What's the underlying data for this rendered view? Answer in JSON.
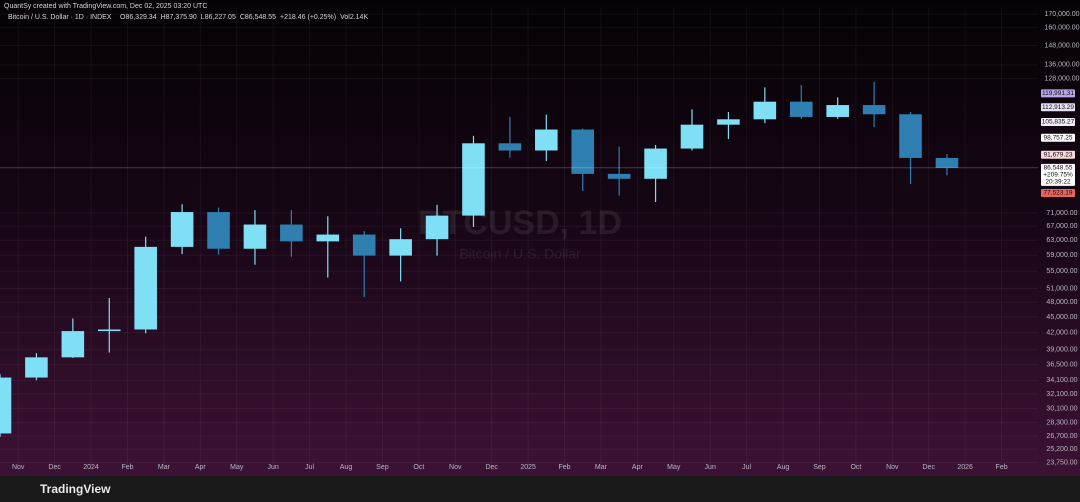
{
  "chart_data": {
    "type": "candlestick",
    "credit": "QuantSy created with TradingView.com, Dec 02, 2025 03:20 UTC",
    "title": "Bitcoin / U.S. Dollar · 1D · INDEX",
    "legend_values": [
      "O86,329.34",
      "H87,375.90",
      "L86,227.05",
      "C86,548.55",
      "+218.46 (+0.25%)",
      "Vol2.14K"
    ],
    "watermark": "BTCUSD, 1D",
    "watermark_sub": "Bitcoin / U.S. Dollar",
    "brand": "TradingView",
    "log_scale": true,
    "grid": true,
    "up_color": "#7fe0f5",
    "down_color": "#2f7fb0",
    "x": [
      "2023-10",
      "2023-11",
      "2023-12",
      "2024-01",
      "2024-02",
      "2024-03",
      "2024-04",
      "2024-05",
      "2024-06",
      "2024-07",
      "2024-08",
      "2024-09",
      "2024-10",
      "2024-11",
      "2024-12",
      "2025-01",
      "2025-02",
      "2025-03",
      "2025-04",
      "2025-05",
      "2025-06",
      "2025-07",
      "2025-08",
      "2025-09",
      "2025-10",
      "2025-11",
      "2025-12"
    ],
    "open": [
      27000,
      34500,
      37700,
      42300,
      42600,
      61200,
      71300,
      60700,
      67500,
      62700,
      64600,
      58900,
      63300,
      70200,
      96400,
      93400,
      102400,
      84300,
      82500,
      94200,
      104600,
      107100,
      115700,
      108200,
      114000,
      109500,
      90400
    ],
    "high": [
      35000,
      38400,
      44700,
      48900,
      64000,
      73800,
      72700,
      71900,
      71900,
      70000,
      65600,
      66400,
      73600,
      99600,
      108300,
      109300,
      102800,
      95000,
      95700,
      111900,
      110600,
      123200,
      124400,
      117900,
      126200,
      110600,
      92000
    ],
    "low": [
      26600,
      34100,
      37600,
      38500,
      41900,
      59300,
      59200,
      56600,
      58600,
      53500,
      49100,
      52600,
      58900,
      66800,
      90500,
      89200,
      78200,
      76600,
      74500,
      93400,
      98200,
      105300,
      107300,
      107300,
      103500,
      80600,
      83800
    ],
    "close": [
      34500,
      37700,
      42300,
      42600,
      61200,
      71300,
      60700,
      67500,
      62700,
      64600,
      58900,
      63300,
      70200,
      96400,
      93400,
      102400,
      84300,
      82500,
      94200,
      104600,
      107100,
      115700,
      108200,
      114000,
      109500,
      90400,
      86548.55
    ],
    "xlim": [
      "2023-10",
      "2026-03"
    ],
    "xticks": [
      {
        "value": "2023-11",
        "label": "Nov"
      },
      {
        "value": "2023-12",
        "label": "Dec"
      },
      {
        "value": "2024-01",
        "label": "2024"
      },
      {
        "value": "2024-02",
        "label": "Feb"
      },
      {
        "value": "2024-03",
        "label": "Mar"
      },
      {
        "value": "2024-04",
        "label": "Apr"
      },
      {
        "value": "2024-05",
        "label": "May"
      },
      {
        "value": "2024-06",
        "label": "Jun"
      },
      {
        "value": "2024-07",
        "label": "Jul"
      },
      {
        "value": "2024-08",
        "label": "Aug"
      },
      {
        "value": "2024-09",
        "label": "Sep"
      },
      {
        "value": "2024-10",
        "label": "Oct"
      },
      {
        "value": "2024-11",
        "label": "Nov"
      },
      {
        "value": "2024-12",
        "label": "Dec"
      },
      {
        "value": "2025-01",
        "label": "2025"
      },
      {
        "value": "2025-02",
        "label": "Feb"
      },
      {
        "value": "2025-03",
        "label": "Mar"
      },
      {
        "value": "2025-04",
        "label": "Apr"
      },
      {
        "value": "2025-05",
        "label": "May"
      },
      {
        "value": "2025-06",
        "label": "Jun"
      },
      {
        "value": "2025-07",
        "label": "Jul"
      },
      {
        "value": "2025-08",
        "label": "Aug"
      },
      {
        "value": "2025-09",
        "label": "Sep"
      },
      {
        "value": "2025-10",
        "label": "Oct"
      },
      {
        "value": "2025-11",
        "label": "Nov"
      },
      {
        "value": "2025-12",
        "label": "Dec"
      },
      {
        "value": "2026-01",
        "label": "2026"
      },
      {
        "value": "2026-02",
        "label": "Feb"
      }
    ],
    "ylim": [
      23000,
      174500
    ],
    "yticks": [
      {
        "value": 170000,
        "label": "170,000.00"
      },
      {
        "value": 160000,
        "label": "160,000.00"
      },
      {
        "value": 148000,
        "label": "148,000.00"
      },
      {
        "value": 136000,
        "label": "136,000.00"
      },
      {
        "value": 128000,
        "label": "128,000.00"
      },
      {
        "value": 71000,
        "label": "71,000.00"
      },
      {
        "value": 67000,
        "label": "67,000.00"
      },
      {
        "value": 63000,
        "label": "63,000.00"
      },
      {
        "value": 59000,
        "label": "59,000.00"
      },
      {
        "value": 55000,
        "label": "55,000.00"
      },
      {
        "value": 51000,
        "label": "51,000.00"
      },
      {
        "value": 48000,
        "label": "48,000.00"
      },
      {
        "value": 45000,
        "label": "45,000.00"
      },
      {
        "value": 42000,
        "label": "42,000.00"
      },
      {
        "value": 39000,
        "label": "39,000.00"
      },
      {
        "value": 36500,
        "label": "36,500.00"
      },
      {
        "value": 34100,
        "label": "34,100.00"
      },
      {
        "value": 32100,
        "label": "32,100.00"
      },
      {
        "value": 30100,
        "label": "30,100.00"
      },
      {
        "value": 28300,
        "label": "28,300.00"
      },
      {
        "value": 26700,
        "label": "26,700.00"
      },
      {
        "value": 25200,
        "label": "25,200.00"
      },
      {
        "value": 23750,
        "label": "23,750.00"
      }
    ],
    "level_labels": [
      {
        "value": 119991.31,
        "label": "119,991.31",
        "color": "#b9a6e8"
      },
      {
        "value": 112913.29,
        "label": "112,913.29",
        "color": "#e6e0f5"
      },
      {
        "value": 105835.27,
        "label": "105,835.27",
        "color": "#f2eef8"
      },
      {
        "value": 98757.25,
        "label": "98,757.25",
        "color": "#ffffff"
      },
      {
        "value": 91679.23,
        "label": "91,679.23",
        "color": "#f8d8dc"
      },
      {
        "value": 84601.21,
        "label": "84,601.21",
        "color": "#f28b82"
      },
      {
        "value": 77523.19,
        "label": "77,523.19",
        "color": "#e8645c"
      }
    ],
    "price_tag": {
      "value": 86548.55,
      "label": "86,548.55",
      "change": "+209.75%",
      "countdown": "20:39:22",
      "color": "#ffffff"
    }
  }
}
